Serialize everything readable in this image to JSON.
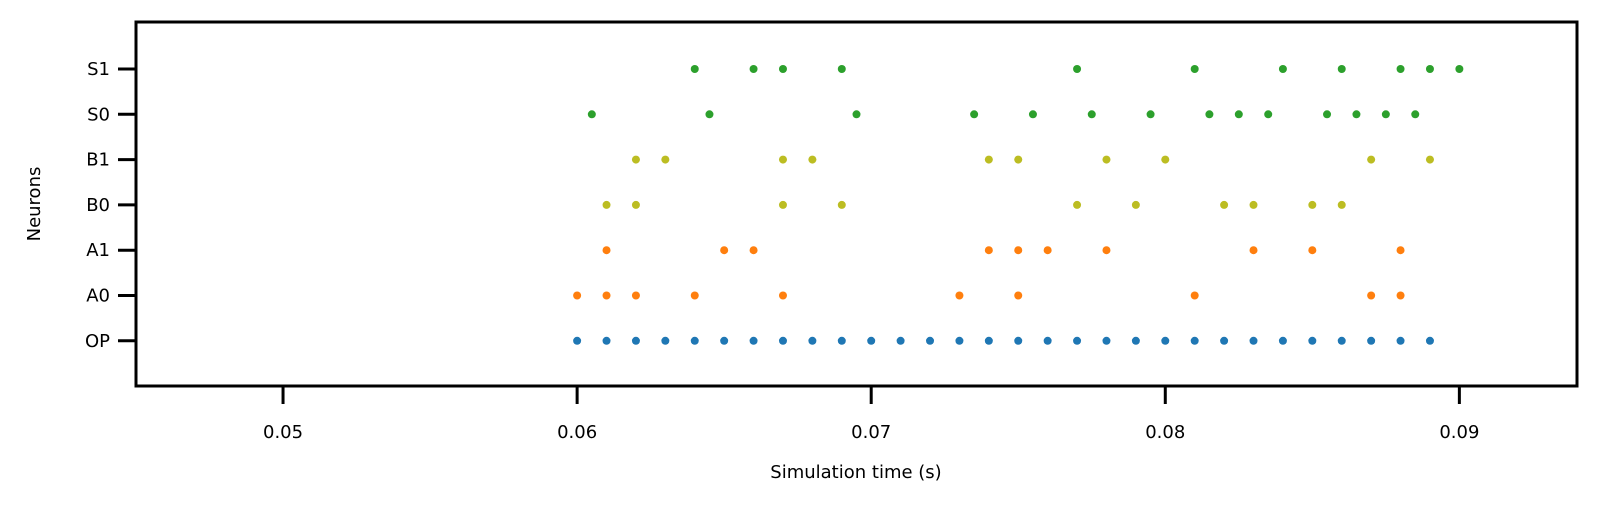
{
  "chart_data": {
    "type": "scatter",
    "xlabel": "Simulation time (s)",
    "ylabel": "Neurons",
    "xlim": [
      0.045,
      0.094
    ],
    "xticks": [
      "0.05",
      "0.06",
      "0.07",
      "0.08",
      "0.09"
    ],
    "categories": [
      "OP",
      "A0",
      "A1",
      "B0",
      "B1",
      "S0",
      "S1"
    ],
    "grid": false,
    "colors": {
      "OP": "#1f77b4",
      "A0": "#ff7f0e",
      "A1": "#ff7f0e",
      "B0": "#bcbd22",
      "B1": "#bcbd22",
      "S0": "#2ca02c",
      "S1": "#2ca02c"
    },
    "series": [
      {
        "neuron": "OP",
        "x": [
          0.06,
          0.061,
          0.062,
          0.063,
          0.064,
          0.065,
          0.066,
          0.067,
          0.068,
          0.069,
          0.07,
          0.071,
          0.072,
          0.073,
          0.074,
          0.075,
          0.076,
          0.077,
          0.078,
          0.079,
          0.08,
          0.081,
          0.082,
          0.083,
          0.084,
          0.085,
          0.086,
          0.087,
          0.088,
          0.089
        ]
      },
      {
        "neuron": "A0",
        "x": [
          0.06,
          0.061,
          0.062,
          0.064,
          0.067,
          0.073,
          0.075,
          0.081,
          0.087,
          0.088
        ]
      },
      {
        "neuron": "A1",
        "x": [
          0.061,
          0.065,
          0.066,
          0.074,
          0.075,
          0.076,
          0.078,
          0.083,
          0.085,
          0.088
        ]
      },
      {
        "neuron": "B0",
        "x": [
          0.061,
          0.062,
          0.067,
          0.069,
          0.077,
          0.079,
          0.082,
          0.083,
          0.085,
          0.086
        ]
      },
      {
        "neuron": "B1",
        "x": [
          0.062,
          0.063,
          0.067,
          0.068,
          0.074,
          0.075,
          0.078,
          0.08,
          0.087,
          0.089
        ]
      },
      {
        "neuron": "S0",
        "x": [
          0.0605,
          0.0645,
          0.0695,
          0.0735,
          0.0755,
          0.0775,
          0.0795,
          0.0815,
          0.0825,
          0.0835,
          0.0855,
          0.0865,
          0.0875,
          0.0885
        ]
      },
      {
        "neuron": "S1",
        "x": [
          0.064,
          0.066,
          0.067,
          0.069,
          0.077,
          0.081,
          0.084,
          0.086,
          0.088,
          0.089,
          0.09
        ]
      }
    ]
  }
}
